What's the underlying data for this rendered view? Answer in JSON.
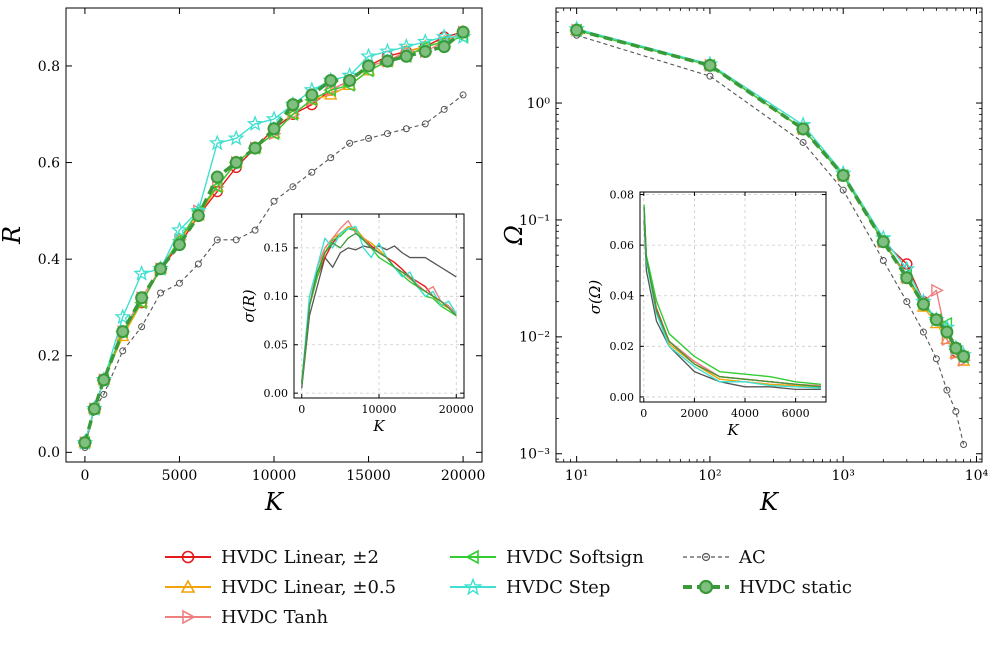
{
  "colors": {
    "hvdc_linear_2": "#e41a1c",
    "hvdc_linear_05": "#f0a30a",
    "hvdc_tanh": "#f08080",
    "hvdc_softsign": "#33cc33",
    "hvdc_step": "#40e0d0",
    "ac": "#555555",
    "hvdc_static": "#3a9a3a"
  },
  "legend": [
    {
      "key": "hvdc_linear_2",
      "label": "HVDC Linear, ±2",
      "marker": "circle",
      "style": "solid"
    },
    {
      "key": "hvdc_linear_05",
      "label": "HVDC Linear, ±0.5",
      "marker": "triangle-up",
      "style": "solid"
    },
    {
      "key": "hvdc_tanh",
      "label": "HVDC Tanh",
      "marker": "triangle-right",
      "style": "solid"
    },
    {
      "key": "hvdc_softsign",
      "label": "HVDC Softsign",
      "marker": "triangle-left",
      "style": "solid"
    },
    {
      "key": "hvdc_step",
      "label": "HVDC Step",
      "marker": "star",
      "style": "solid"
    },
    {
      "key": "ac",
      "label": "AC",
      "marker": "small-circle",
      "style": "dashed"
    },
    {
      "key": "hvdc_static",
      "label": "HVDC static",
      "marker": "big-circle",
      "style": "thick-dashed"
    }
  ],
  "chart_data": [
    {
      "id": "left",
      "type": "line",
      "xlabel": "K",
      "ylabel": "R",
      "xlim": [
        -1000,
        21000
      ],
      "ylim": [
        -0.02,
        0.92
      ],
      "xticks": [
        0,
        5000,
        10000,
        15000,
        20000
      ],
      "xtick_labels": [
        "0",
        "5000",
        "10000",
        "15000",
        "20000"
      ],
      "yticks": [
        0.0,
        0.2,
        0.4,
        0.6,
        0.8
      ],
      "ytick_labels": [
        "0.0",
        "0.2",
        "0.4",
        "0.6",
        "0.8"
      ],
      "x": [
        0,
        500,
        1000,
        2000,
        3000,
        4000,
        5000,
        6000,
        7000,
        8000,
        9000,
        10000,
        11000,
        12000,
        13000,
        14000,
        15000,
        16000,
        17000,
        18000,
        19000,
        20000
      ],
      "series": [
        {
          "key": "hvdc_linear_2",
          "values": [
            0.02,
            0.09,
            0.15,
            0.25,
            0.31,
            0.38,
            0.43,
            0.49,
            0.54,
            0.59,
            0.63,
            0.67,
            0.7,
            0.72,
            0.75,
            0.77,
            0.8,
            0.82,
            0.83,
            0.84,
            0.86,
            0.87
          ]
        },
        {
          "key": "hvdc_linear_05",
          "values": [
            0.02,
            0.09,
            0.15,
            0.24,
            0.31,
            0.38,
            0.44,
            0.49,
            0.55,
            0.6,
            0.63,
            0.66,
            0.7,
            0.73,
            0.74,
            0.76,
            0.79,
            0.81,
            0.83,
            0.84,
            0.85,
            0.87
          ]
        },
        {
          "key": "hvdc_tanh",
          "values": [
            0.02,
            0.09,
            0.15,
            0.25,
            0.32,
            0.38,
            0.44,
            0.5,
            0.55,
            0.6,
            0.63,
            0.66,
            0.7,
            0.73,
            0.75,
            0.77,
            0.8,
            0.81,
            0.83,
            0.83,
            0.85,
            0.87
          ]
        },
        {
          "key": "hvdc_softsign",
          "values": [
            0.02,
            0.09,
            0.15,
            0.25,
            0.31,
            0.38,
            0.44,
            0.5,
            0.55,
            0.6,
            0.63,
            0.66,
            0.7,
            0.73,
            0.75,
            0.76,
            0.79,
            0.81,
            0.82,
            0.84,
            0.85,
            0.86
          ]
        },
        {
          "key": "hvdc_step",
          "values": [
            0.02,
            0.09,
            0.15,
            0.28,
            0.37,
            0.38,
            0.46,
            0.5,
            0.64,
            0.65,
            0.68,
            0.69,
            0.72,
            0.75,
            0.77,
            0.78,
            0.82,
            0.83,
            0.84,
            0.85,
            0.86,
            0.86
          ]
        },
        {
          "key": "ac",
          "values": [
            0.01,
            0.09,
            0.12,
            0.21,
            0.26,
            0.33,
            0.35,
            0.39,
            0.44,
            0.44,
            0.46,
            0.52,
            0.55,
            0.58,
            0.61,
            0.64,
            0.65,
            0.66,
            0.67,
            0.68,
            0.71,
            0.74
          ]
        },
        {
          "key": "hvdc_static",
          "values": [
            0.02,
            0.09,
            0.15,
            0.25,
            0.32,
            0.38,
            0.43,
            0.49,
            0.57,
            0.6,
            0.63,
            0.67,
            0.72,
            0.74,
            0.77,
            0.77,
            0.8,
            0.81,
            0.82,
            0.83,
            0.84,
            0.87
          ]
        }
      ],
      "inset": {
        "type": "line",
        "xlabel": "K",
        "ylabel": "σ(R)",
        "xlim": [
          -1000,
          21000
        ],
        "ylim": [
          -0.005,
          0.185
        ],
        "xticks": [
          0,
          10000,
          20000
        ],
        "xtick_labels": [
          "0",
          "10000",
          "20000"
        ],
        "yticks": [
          0.0,
          0.05,
          0.1,
          0.15
        ],
        "ytick_labels": [
          "0.00",
          "0.05",
          "0.10",
          "0.15"
        ],
        "x": [
          0,
          1000,
          2000,
          3000,
          4000,
          5000,
          6000,
          7000,
          8000,
          9000,
          10000,
          11000,
          12000,
          13000,
          14000,
          15000,
          16000,
          17000,
          18000,
          19000,
          20000
        ],
        "series": [
          {
            "key": "hvdc_linear_2",
            "values": [
              0.01,
              0.09,
              0.12,
              0.14,
              0.155,
              0.165,
              0.17,
              0.168,
              0.16,
              0.152,
              0.145,
              0.14,
              0.135,
              0.128,
              0.12,
              0.115,
              0.11,
              0.1,
              0.095,
              0.09,
              0.08
            ]
          },
          {
            "key": "hvdc_linear_05",
            "values": [
              0.01,
              0.09,
              0.12,
              0.15,
              0.16,
              0.165,
              0.172,
              0.17,
              0.16,
              0.155,
              0.148,
              0.14,
              0.13,
              0.125,
              0.12,
              0.11,
              0.105,
              0.1,
              0.092,
              0.088,
              0.082
            ]
          },
          {
            "key": "hvdc_tanh",
            "values": [
              0.01,
              0.09,
              0.13,
              0.15,
              0.16,
              0.17,
              0.178,
              0.165,
              0.16,
              0.15,
              0.145,
              0.14,
              0.13,
              0.125,
              0.118,
              0.112,
              0.105,
              0.11,
              0.095,
              0.09,
              0.082
            ]
          },
          {
            "key": "hvdc_softsign",
            "values": [
              0.01,
              0.09,
              0.12,
              0.145,
              0.158,
              0.162,
              0.17,
              0.168,
              0.158,
              0.15,
              0.14,
              0.135,
              0.13,
              0.122,
              0.115,
              0.11,
              0.1,
              0.098,
              0.09,
              0.085,
              0.08
            ]
          },
          {
            "key": "hvdc_step",
            "values": [
              0.01,
              0.1,
              0.13,
              0.16,
              0.15,
              0.165,
              0.17,
              0.172,
              0.15,
              0.14,
              0.155,
              0.14,
              0.13,
              0.12,
              0.125,
              0.11,
              0.1,
              0.105,
              0.09,
              0.095,
              0.082
            ]
          },
          {
            "key": "ac",
            "values": [
              0.005,
              0.08,
              0.11,
              0.14,
              0.13,
              0.145,
              0.15,
              0.148,
              0.152,
              0.15,
              0.152,
              0.148,
              0.152,
              0.145,
              0.14,
              0.14,
              0.14,
              0.135,
              0.13,
              0.125,
              0.12
            ]
          },
          {
            "key": "hvdc_static",
            "values": [
              0.01,
              0.09,
              0.125,
              0.145,
              0.155,
              0.15,
              0.16,
              0.165,
              0.158,
              0.15,
              0.145,
              0.14,
              0.13,
              0.125,
              0.12,
              0.11,
              0.105,
              0.1,
              0.095,
              0.088,
              0.08
            ]
          }
        ]
      }
    },
    {
      "id": "right",
      "type": "line",
      "xscale": "log",
      "yscale": "log",
      "xlabel": "K",
      "ylabel": "Ω",
      "xlim": [
        7,
        11000
      ],
      "ylim": [
        0.00085,
        6.5
      ],
      "xticks": [
        10,
        100,
        1000,
        10000
      ],
      "xtick_labels": [
        "10¹",
        "10²",
        "10³",
        "10⁴"
      ],
      "yticks": [
        0.001,
        0.01,
        0.1,
        1
      ],
      "ytick_labels": [
        "10⁻³",
        "10⁻²",
        "10⁻¹",
        "10⁰"
      ],
      "x": [
        10,
        100,
        500,
        1000,
        2000,
        3000,
        4000,
        5000,
        6000,
        7000,
        8000
      ],
      "series": [
        {
          "key": "hvdc_linear_2",
          "values": [
            4.2,
            2.1,
            0.6,
            0.24,
            0.065,
            0.042,
            0.02,
            0.014,
            0.011,
            0.0075,
            0.0068
          ]
        },
        {
          "key": "hvdc_linear_05",
          "values": [
            4.2,
            2.1,
            0.6,
            0.24,
            0.065,
            0.032,
            0.018,
            0.013,
            0.0095,
            0.0072,
            0.0062
          ]
        },
        {
          "key": "hvdc_tanh",
          "values": [
            4.2,
            2.1,
            0.6,
            0.24,
            0.065,
            0.032,
            0.02,
            0.025,
            0.0095,
            0.0072,
            0.0063
          ]
        },
        {
          "key": "hvdc_softsign",
          "values": [
            4.2,
            2.1,
            0.6,
            0.24,
            0.065,
            0.034,
            0.019,
            0.014,
            0.013,
            0.0078,
            0.0067
          ]
        },
        {
          "key": "hvdc_step",
          "values": [
            4.3,
            2.15,
            0.65,
            0.25,
            0.07,
            0.038,
            0.02,
            0.014,
            0.012,
            0.008,
            0.007
          ]
        },
        {
          "key": "ac",
          "values": [
            3.8,
            1.7,
            0.46,
            0.18,
            0.045,
            0.02,
            0.011,
            0.0065,
            0.0035,
            0.0023,
            0.0012
          ]
        },
        {
          "key": "hvdc_static",
          "values": [
            4.2,
            2.1,
            0.6,
            0.24,
            0.065,
            0.032,
            0.019,
            0.014,
            0.011,
            0.008,
            0.0068
          ]
        }
      ],
      "inset": {
        "type": "line",
        "xlabel": "K",
        "ylabel": "σ(Ω)",
        "xlim": [
          -150,
          7200
        ],
        "ylim": [
          -0.002,
          0.081
        ],
        "xticks": [
          0,
          2000,
          4000,
          6000
        ],
        "xtick_labels": [
          "0",
          "2000",
          "4000",
          "6000"
        ],
        "yticks": [
          0.0,
          0.02,
          0.04,
          0.06,
          0.08
        ],
        "ytick_labels": [
          "0.00",
          "0.02",
          "0.04",
          "0.06",
          "0.08"
        ],
        "x": [
          10,
          100,
          500,
          1000,
          2000,
          3000,
          4000,
          5000,
          6000,
          7000
        ],
        "series": [
          {
            "key": "hvdc_linear_2",
            "values": [
              0.075,
              0.055,
              0.035,
              0.022,
              0.014,
              0.008,
              0.007,
              0.006,
              0.005,
              0.004
            ]
          },
          {
            "key": "hvdc_linear_05",
            "values": [
              0.075,
              0.055,
              0.034,
              0.021,
              0.013,
              0.007,
              0.006,
              0.005,
              0.0045,
              0.004
            ]
          },
          {
            "key": "hvdc_tanh",
            "values": [
              0.075,
              0.055,
              0.034,
              0.022,
              0.014,
              0.008,
              0.007,
              0.006,
              0.005,
              0.0045
            ]
          },
          {
            "key": "hvdc_softsign",
            "values": [
              0.076,
              0.056,
              0.038,
              0.025,
              0.016,
              0.01,
              0.009,
              0.008,
              0.006,
              0.005
            ]
          },
          {
            "key": "hvdc_step",
            "values": [
              0.075,
              0.054,
              0.033,
              0.02,
              0.012,
              0.006,
              0.006,
              0.0045,
              0.004,
              0.0035
            ]
          },
          {
            "key": "ac",
            "values": [
              0.07,
              0.05,
              0.03,
              0.02,
              0.01,
              0.006,
              0.004,
              0.004,
              0.003,
              0.003
            ]
          },
          {
            "key": "hvdc_static",
            "values": [
              0.075,
              0.055,
              0.034,
              0.022,
              0.013,
              0.008,
              0.007,
              0.006,
              0.005,
              0.004
            ]
          }
        ]
      }
    }
  ]
}
